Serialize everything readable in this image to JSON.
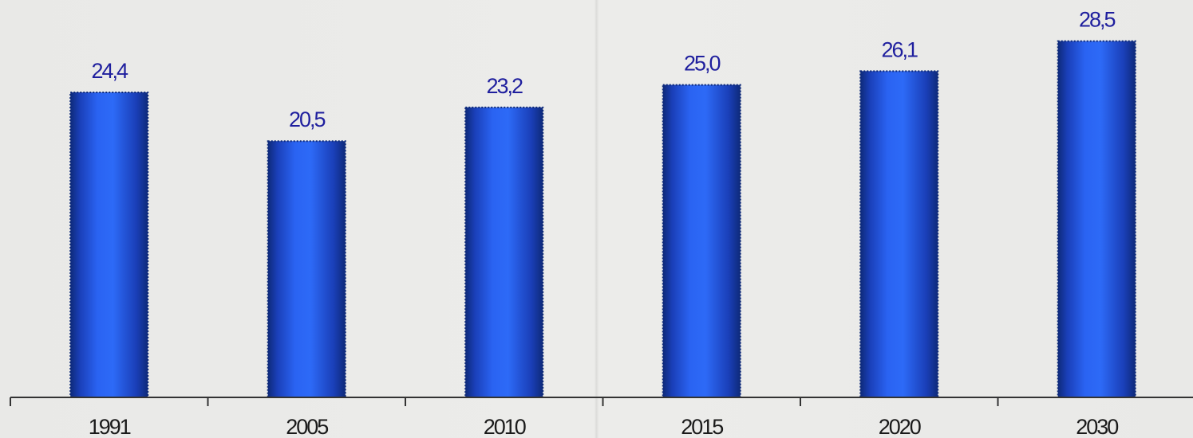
{
  "chart_data": {
    "type": "bar",
    "categories": [
      "1991",
      "2005",
      "2010",
      "2015",
      "2020",
      "2030"
    ],
    "values": [
      24.4,
      20.5,
      23.2,
      25.0,
      26.1,
      28.5
    ],
    "value_labels": [
      "24,4",
      "20,5",
      "23,2",
      "25,0",
      "26,1",
      "28,5"
    ],
    "title": "",
    "xlabel": "",
    "ylabel": "",
    "ylim": [
      0,
      30
    ],
    "grid": false,
    "legend": "none",
    "bar_color": "#1c4fe0",
    "bar_edge_color": "#0e2a7a",
    "label_color": "#1f1f9e",
    "background": "#ebebe9"
  }
}
